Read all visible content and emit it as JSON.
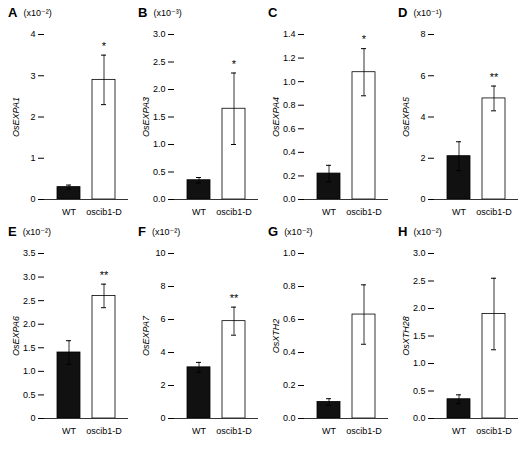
{
  "chart_data": [
    {
      "type": "bar",
      "title": "A",
      "subtitle": "(x10⁻²)",
      "ylabel": "OsEXPA1",
      "categories": [
        "WT",
        "oscib1-D"
      ],
      "values": [
        0.3,
        2.9
      ],
      "errors": [
        0.05,
        0.6
      ],
      "colors": [
        "#111111",
        "#ffffff"
      ],
      "ylim": [
        0,
        4
      ],
      "yticks": [
        0,
        1,
        2,
        3,
        4
      ],
      "annotations": [
        {
          "category": "oscib1-D",
          "text": "*"
        }
      ]
    },
    {
      "type": "bar",
      "title": "B",
      "subtitle": "(x10⁻³)",
      "ylabel": "OsEXPA3",
      "categories": [
        "WT",
        "oscib1-D"
      ],
      "values": [
        0.35,
        1.65
      ],
      "errors": [
        0.05,
        0.65
      ],
      "colors": [
        "#111111",
        "#ffffff"
      ],
      "ylim": [
        0,
        3.0
      ],
      "yticks": [
        {
          "value": 0,
          "label": "0.0"
        },
        0.5,
        {
          "value": 1,
          "label": "1.0"
        },
        1.5,
        {
          "value": 2,
          "label": "2.0"
        },
        2.5,
        {
          "value": 3,
          "label": "3.0"
        }
      ],
      "annotations": [
        {
          "category": "oscib1-D",
          "text": "*"
        }
      ]
    },
    {
      "type": "bar",
      "title": "C",
      "ylabel": "OsEXPA4",
      "categories": [
        "WT",
        "oscib1-D"
      ],
      "values": [
        0.22,
        1.08
      ],
      "errors": [
        0.07,
        0.2
      ],
      "colors": [
        "#111111",
        "#ffffff"
      ],
      "ylim": [
        0,
        1.4
      ],
      "yticks": [
        {
          "value": 0,
          "label": "0.0"
        },
        0.2,
        0.4,
        0.6,
        0.8,
        {
          "value": 1,
          "label": "1.0"
        },
        1.2,
        1.4
      ],
      "annotations": [
        {
          "category": "oscib1-D",
          "text": "*"
        }
      ]
    },
    {
      "type": "bar",
      "title": "D",
      "subtitle": "(x10⁻¹)",
      "ylabel": "OsEXPA5",
      "categories": [
        "WT",
        "oscib1-D"
      ],
      "values": [
        2.1,
        4.9
      ],
      "errors": [
        0.7,
        0.6
      ],
      "colors": [
        "#111111",
        "#ffffff"
      ],
      "ylim": [
        0,
        8
      ],
      "yticks": [
        0,
        2,
        4,
        6,
        8
      ],
      "annotations": [
        {
          "category": "oscib1-D",
          "text": "**"
        }
      ]
    },
    {
      "type": "bar",
      "title": "E",
      "subtitle": "(x10⁻²)",
      "ylabel": "OsEXPA6",
      "categories": [
        "WT",
        "oscib1-D"
      ],
      "values": [
        1.4,
        2.6
      ],
      "errors": [
        0.25,
        0.25
      ],
      "colors": [
        "#111111",
        "#ffffff"
      ],
      "ylim": [
        0,
        3.5
      ],
      "yticks": [
        0,
        0.5,
        {
          "value": 1,
          "label": "1.0"
        },
        1.5,
        {
          "value": 2,
          "label": "2.0"
        },
        2.5,
        {
          "value": 3,
          "label": "3.0"
        },
        3.5
      ],
      "annotations": [
        {
          "category": "oscib1-D",
          "text": "**"
        }
      ]
    },
    {
      "type": "bar",
      "title": "F",
      "subtitle": "(x10⁻²)",
      "ylabel": "OsEXPA7",
      "categories": [
        "WT",
        "oscib1-D"
      ],
      "values": [
        3.1,
        5.9
      ],
      "errors": [
        0.3,
        0.85
      ],
      "colors": [
        "#111111",
        "#ffffff"
      ],
      "ylim": [
        0,
        10
      ],
      "yticks": [
        0,
        2,
        4,
        6,
        8,
        10
      ],
      "annotations": [
        {
          "category": "oscib1-D",
          "text": "**"
        }
      ]
    },
    {
      "type": "bar",
      "title": "G",
      "subtitle": "(x10⁻²)",
      "ylabel": "OsXTH2",
      "categories": [
        "WT",
        "oscib1-D"
      ],
      "values": [
        0.1,
        0.63
      ],
      "errors": [
        0.02,
        0.18
      ],
      "colors": [
        "#111111",
        "#ffffff"
      ],
      "ylim": [
        0,
        1.0
      ],
      "yticks": [
        {
          "value": 0,
          "label": "0.0"
        },
        0.2,
        0.4,
        0.6,
        0.8,
        {
          "value": 1,
          "label": "1.0"
        }
      ]
    },
    {
      "type": "bar",
      "title": "H",
      "subtitle": "(x10⁻²)",
      "ylabel": "OsXTH28",
      "categories": [
        "WT",
        "oscib1-D"
      ],
      "values": [
        0.35,
        1.9
      ],
      "errors": [
        0.08,
        0.65
      ],
      "colors": [
        "#111111",
        "#ffffff"
      ],
      "ylim": [
        0,
        3.0
      ],
      "yticks": [
        {
          "value": 0,
          "label": "0.0"
        },
        0.5,
        {
          "value": 1,
          "label": "1.0"
        },
        1.5,
        {
          "value": 2,
          "label": "2.0"
        },
        2.5,
        {
          "value": 3,
          "label": "3.0"
        }
      ]
    }
  ]
}
